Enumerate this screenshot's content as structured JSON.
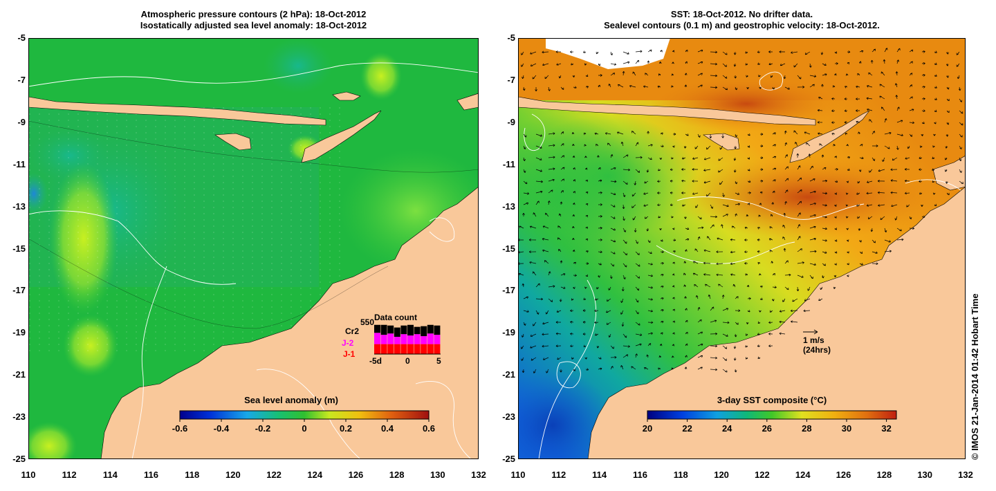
{
  "left_panel": {
    "title_line1": "Atmospheric pressure contours (2 hPa): 18-Oct-2012",
    "title_line2": "Isostatically adjusted sea level anomaly: 18-Oct-2012",
    "colorbar": {
      "label": "Sea level anomaly (m)",
      "ticks": [
        "-0.6",
        "-0.4",
        "-0.2",
        "0",
        "0.2",
        "0.4",
        "0.6"
      ],
      "range": [
        -0.6,
        0.6
      ]
    },
    "data_count": {
      "title": "Data count",
      "max_label": "550",
      "x_ticks": [
        "-5d",
        "0",
        "5"
      ],
      "series": [
        {
          "name": "Cr2",
          "color": "#000000"
        },
        {
          "name": "J-2",
          "color": "#ff00ff"
        },
        {
          "name": "J-1",
          "color": "#ff0000"
        }
      ],
      "bars": [
        {
          "j1": 0.3,
          "j2": 0.34,
          "cr2": 0.24
        },
        {
          "j1": 0.3,
          "j2": 0.28,
          "cr2": 0.3
        },
        {
          "j1": 0.3,
          "j2": 0.32,
          "cr2": 0.24
        },
        {
          "j1": 0.3,
          "j2": 0.22,
          "cr2": 0.28
        },
        {
          "j1": 0.3,
          "j2": 0.3,
          "cr2": 0.26
        },
        {
          "j1": 0.3,
          "j2": 0.26,
          "cr2": 0.32
        },
        {
          "j1": 0.3,
          "j2": 0.3,
          "cr2": 0.22
        },
        {
          "j1": 0.3,
          "j2": 0.24,
          "cr2": 0.3
        },
        {
          "j1": 0.3,
          "j2": 0.32,
          "cr2": 0.26
        },
        {
          "j1": 0.3,
          "j2": 0.28,
          "cr2": 0.28
        }
      ]
    }
  },
  "right_panel": {
    "title_line1": "SST: 18-Oct-2012. No drifter data.",
    "title_line2": "Sealevel contours (0.1 m) and geostrophic velocity: 18-Oct-2012.",
    "velocity_scale": {
      "value": "1 m/s",
      "note": "(24hrs)"
    },
    "colorbar": {
      "label": "3-day SST composite (°C)",
      "ticks": [
        "20",
        "22",
        "24",
        "26",
        "28",
        "30",
        "32"
      ],
      "range": [
        20,
        32.5
      ]
    }
  },
  "axes": {
    "y_ticks": [
      "-5",
      "-7",
      "-9",
      "-11",
      "-13",
      "-15",
      "-17",
      "-19",
      "-21",
      "-23",
      "-25"
    ],
    "x_ticks": [
      "110",
      "112",
      "114",
      "116",
      "118",
      "120",
      "122",
      "124",
      "126",
      "128",
      "130",
      "132"
    ],
    "lat_range": [
      -25,
      -5
    ],
    "lon_range": [
      110,
      132
    ]
  },
  "credit": "© IMOS 21-Jan-2014 01:42 Hobart Time",
  "colors": {
    "land": "#f9c89a",
    "sla_ocean": "#1fb83f",
    "sst_warm": "#f29a10",
    "sst_cool": "#1f8cd8",
    "contour": "#ffffff"
  }
}
